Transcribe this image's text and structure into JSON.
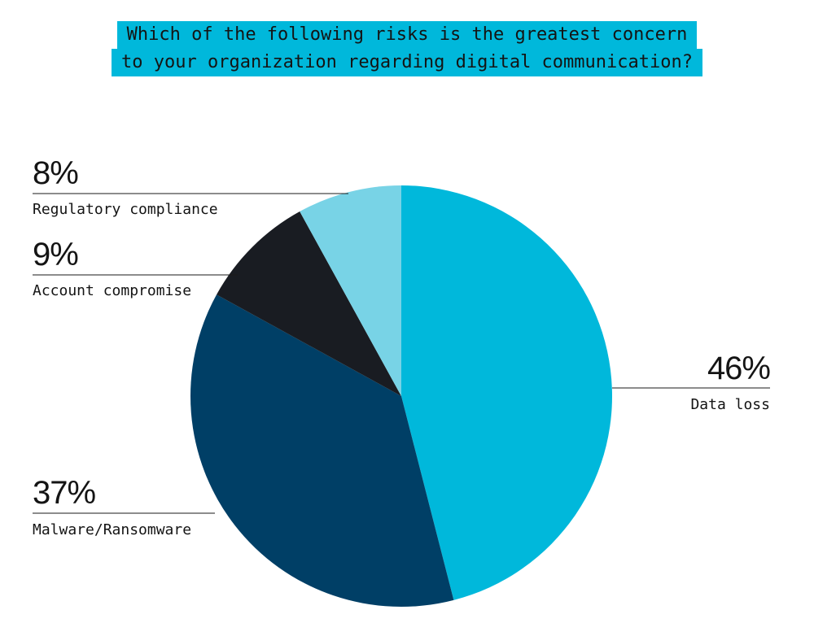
{
  "chart_data": {
    "type": "pie",
    "title": [
      "Which of the following risks is the greatest concern",
      "to your organization regarding digital communication?"
    ],
    "slices": [
      {
        "label": "Data loss",
        "value": 46,
        "value_label": "46%",
        "color": "#00b8db"
      },
      {
        "label": "Malware/Ransomware",
        "value": 37,
        "value_label": "37%",
        "color": "#003f66"
      },
      {
        "label": "Account compromise",
        "value": 9,
        "value_label": "9%",
        "color": "#191c22"
      },
      {
        "label": "Regulatory compliance",
        "value": 8,
        "value_label": "8%",
        "color": "#78d3e6"
      }
    ],
    "start": "12 o'clock",
    "direction": "clockwise",
    "title_background": "#00b8db"
  }
}
